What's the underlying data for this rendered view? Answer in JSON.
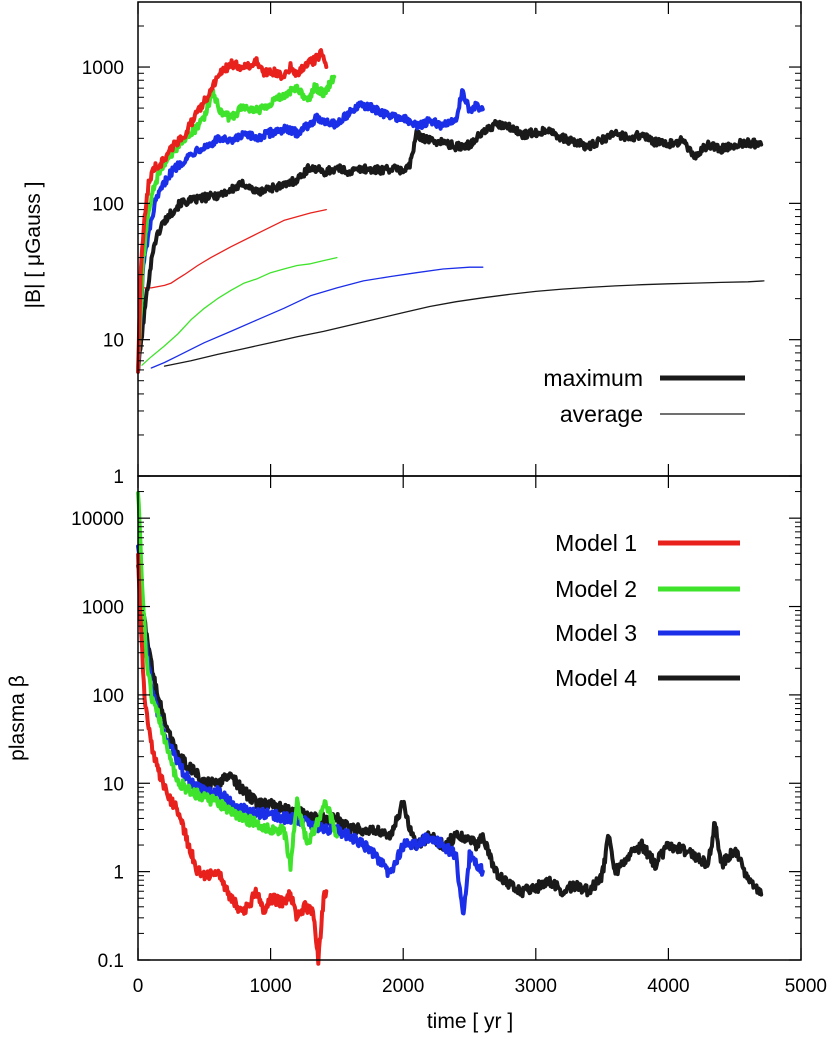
{
  "colors": {
    "model1": "#e8211d",
    "model2": "#3fe32b",
    "model3": "#1b2ee8",
    "model4": "#1a1a1a",
    "frame": "#000000"
  },
  "chart_data": [
    {
      "type": "line",
      "panel": "top",
      "ylabel": "|B| [ μGauss ]",
      "xlabel": "",
      "xlim": [
        0,
        5000
      ],
      "ylim": [
        1,
        3000
      ],
      "yscale": "log",
      "grid": false,
      "yticks": [
        "1",
        "10",
        "100",
        "1000"
      ],
      "style_legend": {
        "position": "lower-right",
        "entries": [
          {
            "label": "maximum",
            "style": "thick"
          },
          {
            "label": "average",
            "style": "thin"
          }
        ]
      },
      "series": [
        {
          "model": "model1",
          "kind": "maximum",
          "x": [
            0,
            20,
            50,
            80,
            120,
            180,
            260,
            350,
            430,
            520,
            620,
            700,
            800,
            900,
            950,
            1000,
            1080,
            1150,
            1200,
            1260,
            1320,
            1380,
            1420
          ],
          "y": [
            6,
            30,
            80,
            140,
            180,
            200,
            260,
            320,
            430,
            600,
            900,
            1050,
            1000,
            1100,
            880,
            950,
            850,
            1000,
            880,
            1050,
            1100,
            1250,
            1000
          ]
        },
        {
          "model": "model1",
          "kind": "average",
          "x": [
            50,
            100,
            200,
            250,
            300,
            350,
            450,
            550,
            700,
            900,
            1100,
            1300,
            1420
          ],
          "y": [
            24,
            24,
            25,
            26,
            28,
            30,
            35,
            40,
            48,
            60,
            75,
            85,
            90
          ]
        },
        {
          "model": "model2",
          "kind": "maximum",
          "x": [
            0,
            40,
            80,
            120,
            170,
            220,
            280,
            350,
            430,
            500,
            560,
            620,
            700,
            800,
            900,
            1000,
            1100,
            1200,
            1280,
            1330,
            1400,
            1480
          ],
          "y": [
            6,
            40,
            90,
            130,
            180,
            210,
            250,
            300,
            350,
            420,
            650,
            480,
            420,
            520,
            480,
            550,
            620,
            700,
            560,
            720,
            640,
            850
          ]
        },
        {
          "model": "model2",
          "kind": "average",
          "x": [
            30,
            100,
            200,
            300,
            400,
            500,
            600,
            700,
            800,
            900,
            1000,
            1100,
            1200,
            1300,
            1400,
            1500
          ],
          "y": [
            6.5,
            7.5,
            9,
            11,
            14,
            17,
            20,
            23,
            26,
            28,
            31,
            33,
            35,
            36,
            38,
            40
          ]
        },
        {
          "model": "model3",
          "kind": "maximum",
          "x": [
            0,
            40,
            80,
            130,
            180,
            230,
            300,
            380,
            450,
            540,
            620,
            700,
            800,
            900,
            1000,
            1100,
            1200,
            1350,
            1500,
            1600,
            1700,
            1800,
            1900,
            2000,
            2100,
            2200,
            2300,
            2400,
            2450,
            2500,
            2550,
            2600
          ],
          "y": [
            6,
            35,
            60,
            100,
            130,
            160,
            190,
            220,
            250,
            270,
            300,
            280,
            320,
            300,
            330,
            350,
            330,
            420,
            380,
            470,
            530,
            480,
            440,
            420,
            370,
            400,
            370,
            420,
            690,
            460,
            520,
            490
          ]
        },
        {
          "model": "model3",
          "kind": "average",
          "x": [
            100,
            200,
            300,
            400,
            500,
            700,
            900,
            1100,
            1300,
            1500,
            1700,
            1900,
            2100,
            2300,
            2500,
            2600
          ],
          "y": [
            6.2,
            6.8,
            7.6,
            8.5,
            9.5,
            11.5,
            14,
            17,
            21,
            24,
            27,
            29,
            31,
            33,
            34,
            34
          ]
        },
        {
          "model": "model4",
          "kind": "maximum",
          "x": [
            0,
            60,
            120,
            180,
            250,
            320,
            400,
            500,
            600,
            700,
            800,
            900,
            1000,
            1100,
            1200,
            1300,
            1400,
            1500,
            1600,
            1700,
            1800,
            1900,
            2000,
            2050,
            2100,
            2200,
            2300,
            2400,
            2500,
            2600,
            2700,
            2800,
            2900,
            3000,
            3100,
            3200,
            3300,
            3400,
            3500,
            3600,
            3700,
            3800,
            3900,
            4000,
            4100,
            4200,
            4300,
            4400,
            4500,
            4600,
            4700
          ],
          "y": [
            6,
            20,
            50,
            70,
            85,
            100,
            105,
            110,
            115,
            125,
            140,
            120,
            130,
            135,
            150,
            185,
            170,
            180,
            170,
            180,
            175,
            180,
            175,
            190,
            320,
            290,
            280,
            260,
            270,
            330,
            380,
            360,
            320,
            330,
            350,
            300,
            280,
            260,
            290,
            330,
            300,
            320,
            280,
            270,
            290,
            220,
            270,
            250,
            270,
            280,
            270
          ]
        },
        {
          "model": "model4",
          "kind": "average",
          "x": [
            200,
            400,
            600,
            800,
            1000,
            1200,
            1400,
            1600,
            1800,
            2000,
            2200,
            2400,
            2600,
            2800,
            3000,
            3200,
            3400,
            3600,
            3800,
            4000,
            4200,
            4400,
            4600,
            4720
          ],
          "y": [
            6.4,
            7,
            7.8,
            8.6,
            9.5,
            10.5,
            11.5,
            12.8,
            14.2,
            15.8,
            17.5,
            19,
            20.3,
            21.5,
            22.6,
            23.5,
            24.2,
            24.8,
            25.3,
            25.7,
            26,
            26.3,
            26.6,
            27
          ]
        }
      ]
    },
    {
      "type": "line",
      "panel": "bottom",
      "ylabel": "plasma β",
      "xlabel": "time [ yr ]",
      "xlim": [
        0,
        5000
      ],
      "ylim": [
        0.1,
        30000
      ],
      "yscale": "log",
      "grid": false,
      "xticks": [
        "0",
        "1000",
        "2000",
        "3000",
        "4000",
        "5000"
      ],
      "yticks": [
        "0.1",
        "1",
        "10",
        "100",
        "1000",
        "10000"
      ],
      "legend": {
        "position": "top-right",
        "entries": [
          {
            "label": "Model 1",
            "series": "model1"
          },
          {
            "label": "Model 2",
            "series": "model2"
          },
          {
            "label": "Model 3",
            "series": "model3"
          },
          {
            "label": "Model 4",
            "series": "model4"
          }
        ]
      },
      "series": [
        {
          "model": "model4",
          "x": [
            0,
            60,
            120,
            200,
            300,
            400,
            500,
            600,
            700,
            800,
            900,
            1000,
            1100,
            1200,
            1300,
            1400,
            1500,
            1600,
            1700,
            1800,
            1900,
            2000,
            2050,
            2100,
            2200,
            2300,
            2400,
            2500,
            2550,
            2600,
            2700,
            2800,
            2900,
            3000,
            3100,
            3200,
            3300,
            3400,
            3500,
            3550,
            3600,
            3700,
            3800,
            3900,
            4000,
            4100,
            4200,
            4300,
            4350,
            4400,
            4500,
            4600,
            4700
          ],
          "y": [
            3000,
            500,
            150,
            50,
            20,
            15,
            10,
            10,
            12,
            8,
            6,
            6,
            5,
            5,
            4,
            4,
            4,
            3,
            3,
            3,
            2.5,
            6,
            3,
            2,
            2.5,
            2,
            2.5,
            2.5,
            2,
            2.5,
            1,
            0.7,
            0.6,
            0.65,
            0.8,
            0.6,
            0.7,
            0.6,
            0.9,
            2.5,
            1,
            1.5,
            2,
            1.2,
            2,
            1.8,
            1.5,
            1.2,
            3.5,
            1.2,
            1.8,
            0.8,
            0.55
          ]
        },
        {
          "model": "model3",
          "x": [
            0,
            40,
            80,
            130,
            180,
            250,
            320,
            400,
            500,
            600,
            700,
            800,
            900,
            1000,
            1100,
            1200,
            1300,
            1400,
            1500,
            1600,
            1700,
            1800,
            1900,
            2000,
            2100,
            2200,
            2300,
            2400,
            2450,
            2500,
            2600
          ],
          "y": [
            5000,
            800,
            200,
            80,
            40,
            25,
            15,
            10,
            8,
            8,
            6,
            5,
            4.5,
            4.5,
            4,
            4,
            3.5,
            3,
            3,
            2.5,
            2,
            1.5,
            0.9,
            2,
            2,
            2.5,
            2,
            1.5,
            0.3,
            1.5,
            1
          ]
        },
        {
          "model": "model2",
          "x": [
            0,
            30,
            60,
            100,
            150,
            200,
            260,
            320,
            400,
            500,
            600,
            700,
            800,
            900,
            1000,
            1100,
            1150,
            1200,
            1280,
            1350,
            1420,
            1500
          ],
          "y": [
            20000,
            2000,
            300,
            100,
            60,
            30,
            15,
            10,
            8,
            7,
            6,
            5,
            4,
            3.5,
            3,
            3,
            1.2,
            6,
            2,
            3.5,
            6,
            2.5
          ]
        },
        {
          "model": "model1",
          "x": [
            0,
            20,
            50,
            80,
            120,
            170,
            230,
            300,
            380,
            450,
            520,
            600,
            700,
            750,
            800,
            900,
            950,
            1000,
            1100,
            1150,
            1200,
            1260,
            1320,
            1360,
            1400,
            1420
          ],
          "y": [
            4000,
            600,
            100,
            40,
            20,
            12,
            7,
            5,
            2,
            1,
            0.9,
            1,
            0.5,
            0.4,
            0.35,
            0.6,
            0.35,
            0.5,
            0.45,
            0.55,
            0.3,
            0.4,
            0.35,
            0.1,
            0.5,
            0.6
          ]
        }
      ]
    }
  ]
}
